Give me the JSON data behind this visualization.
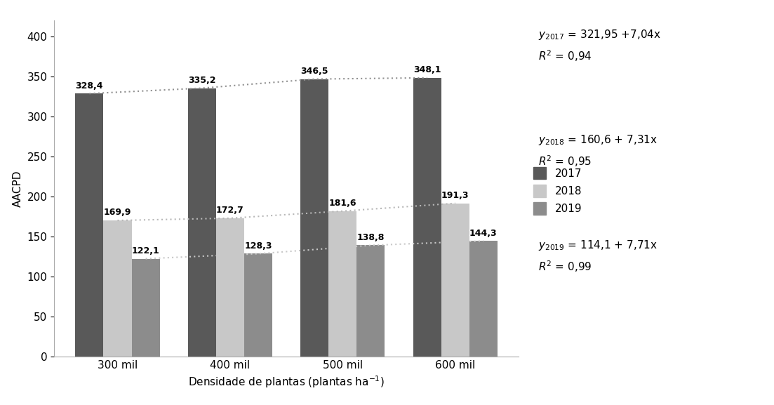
{
  "categories": [
    "300 mil",
    "400 mil",
    "500 mil",
    "600 mil"
  ],
  "series": {
    "2017": [
      328.4,
      335.2,
      346.5,
      348.1
    ],
    "2018": [
      169.9,
      172.7,
      181.6,
      191.3
    ],
    "2019": [
      122.1,
      128.3,
      138.8,
      144.3
    ]
  },
  "bar_colors": {
    "2017": "#595959",
    "2018": "#c8c8c8",
    "2019": "#8c8c8c"
  },
  "trendline_colors": {
    "2017": "#909090",
    "2018": "#b8b8b8",
    "2019": "#c8c8c8"
  },
  "ylabel": "AACPD",
  "xlabel": "Densidade de plantas (plantas ha$^{-1}$)",
  "ylim": [
    0,
    420
  ],
  "yticks": [
    0,
    50,
    100,
    150,
    200,
    250,
    300,
    350,
    400
  ],
  "bar_width": 0.25,
  "axis_fontsize": 11,
  "tick_fontsize": 11,
  "label_fontsize": 9,
  "eq_fontsize": 11,
  "legend_fontsize": 11,
  "eq_line1": "$y_{2017}$ = 321,95 +7,04x\n$R^2$ = 0,94",
  "eq_line2": "$y_{2018}$ = 160,6 + 7,31x\n$R^2$ = 0,95",
  "eq_line3": "$y_{2019}$ = 114,1 + 7,71x\n$R^2$ = 0,99"
}
